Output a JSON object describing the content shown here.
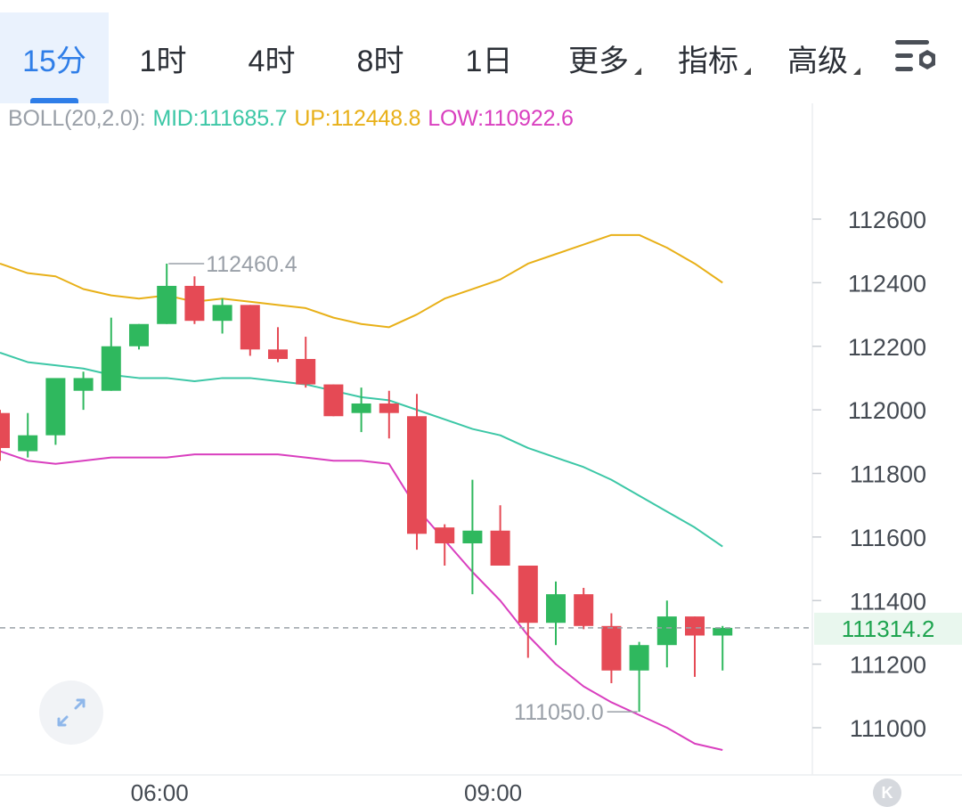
{
  "toolbar": {
    "timeframes": [
      {
        "label": "15分",
        "active": true
      },
      {
        "label": "1时",
        "active": false
      },
      {
        "label": "4时",
        "active": false
      },
      {
        "label": "8时",
        "active": false
      },
      {
        "label": "1日",
        "active": false
      }
    ],
    "more_label": "更多",
    "indicators_label": "指标",
    "advanced_label": "高级",
    "settings_icon": "chart-settings-icon"
  },
  "legend": {
    "name": "BOLL(20,2.0):",
    "mid": "MID:111685.7",
    "up": "UP:112448.8",
    "low": "LOW:110922.6",
    "colors": {
      "name": "#9aa0a8",
      "mid": "#3cc7a6",
      "up": "#e8b018",
      "low": "#d93fbf"
    }
  },
  "chart_data": {
    "type": "candlestick",
    "indicator": "BOLL(20,2.0)",
    "x_tick_labels": [
      "06:00",
      "09:00"
    ],
    "x_tick_candle_index": [
      6,
      18
    ],
    "y_tick_labels": [
      "112600",
      "112400",
      "112200",
      "112000",
      "111800",
      "111600",
      "111400",
      "111200",
      "111000"
    ],
    "y_ticks": [
      112600,
      112400,
      112200,
      112000,
      111800,
      111600,
      111400,
      111200,
      111000
    ],
    "ylim": [
      110850,
      112860
    ],
    "candles": [
      {
        "o": 111990,
        "h": 112000,
        "l": 111840,
        "c": 111880
      },
      {
        "o": 111870,
        "h": 111990,
        "l": 111850,
        "c": 111920
      },
      {
        "o": 111920,
        "h": 112100,
        "l": 111890,
        "c": 112100
      },
      {
        "o": 112060,
        "h": 112120,
        "l": 112000,
        "c": 112100
      },
      {
        "o": 112060,
        "h": 112290,
        "l": 112060,
        "c": 112200
      },
      {
        "o": 112200,
        "h": 112270,
        "l": 112190,
        "c": 112270
      },
      {
        "o": 112270,
        "h": 112460,
        "l": 112270,
        "c": 112390
      },
      {
        "o": 112390,
        "h": 112420,
        "l": 112270,
        "c": 112280
      },
      {
        "o": 112280,
        "h": 112350,
        "l": 112240,
        "c": 112330
      },
      {
        "o": 112330,
        "h": 112330,
        "l": 112170,
        "c": 112190
      },
      {
        "o": 112190,
        "h": 112260,
        "l": 112150,
        "c": 112160
      },
      {
        "o": 112160,
        "h": 112230,
        "l": 112070,
        "c": 112080
      },
      {
        "o": 112080,
        "h": 112080,
        "l": 111980,
        "c": 111980
      },
      {
        "o": 111990,
        "h": 112070,
        "l": 111930,
        "c": 112020
      },
      {
        "o": 112020,
        "h": 112060,
        "l": 111910,
        "c": 111990
      },
      {
        "o": 111980,
        "h": 112050,
        "l": 111560,
        "c": 111610
      },
      {
        "o": 111630,
        "h": 111640,
        "l": 111510,
        "c": 111580
      },
      {
        "o": 111580,
        "h": 111780,
        "l": 111420,
        "c": 111620
      },
      {
        "o": 111620,
        "h": 111700,
        "l": 111510,
        "c": 111510
      },
      {
        "o": 111510,
        "h": 111510,
        "l": 111220,
        "c": 111330
      },
      {
        "o": 111330,
        "h": 111460,
        "l": 111260,
        "c": 111420
      },
      {
        "o": 111420,
        "h": 111440,
        "l": 111310,
        "c": 111320
      },
      {
        "o": 111320,
        "h": 111360,
        "l": 111140,
        "c": 111180
      },
      {
        "o": 111180,
        "h": 111270,
        "l": 111050,
        "c": 111260
      },
      {
        "o": 111260,
        "h": 111400,
        "l": 111190,
        "c": 111350
      },
      {
        "o": 111350,
        "h": 111350,
        "l": 111160,
        "c": 111290
      },
      {
        "o": 111290,
        "h": 111320,
        "l": 111180,
        "c": 111314.2
      }
    ],
    "series": [
      {
        "name": "UP",
        "values": [
          112460,
          112430,
          112420,
          112380,
          112360,
          112350,
          112360,
          112340,
          112350,
          112340,
          112330,
          112320,
          112290,
          112270,
          112260,
          112300,
          112350,
          112380,
          112410,
          112460,
          112490,
          112520,
          112550,
          112550,
          112510,
          112460,
          112400
        ]
      },
      {
        "name": "MID",
        "values": [
          112180,
          112150,
          112140,
          112130,
          112110,
          112100,
          112100,
          112090,
          112100,
          112100,
          112090,
          112080,
          112060,
          112040,
          112030,
          112000,
          111970,
          111940,
          111920,
          111880,
          111850,
          111820,
          111780,
          111730,
          111680,
          111630,
          111570
        ]
      },
      {
        "name": "LOW",
        "values": [
          111870,
          111840,
          111830,
          111840,
          111850,
          111850,
          111850,
          111860,
          111860,
          111860,
          111860,
          111850,
          111840,
          111840,
          111830,
          111690,
          111590,
          111490,
          111400,
          111290,
          111200,
          111130,
          111080,
          111040,
          111000,
          110950,
          110930
        ]
      }
    ],
    "max_label": "112460.4",
    "min_label": "111050.0",
    "max_candle_index": 6,
    "min_candle_index": 23,
    "last_price": 111314.2,
    "last_price_label": "111314.2",
    "colors": {
      "up_candle": "#2fb85e",
      "down_candle": "#e54a55",
      "upper_band": "#e8b018",
      "mid_band": "#3cc7a6",
      "lower_band": "#d93fbf",
      "last_price": "#1ea44f",
      "axis_text": "#444a52",
      "grid": "#eceef1",
      "annotation": "#9aa0a8"
    }
  }
}
